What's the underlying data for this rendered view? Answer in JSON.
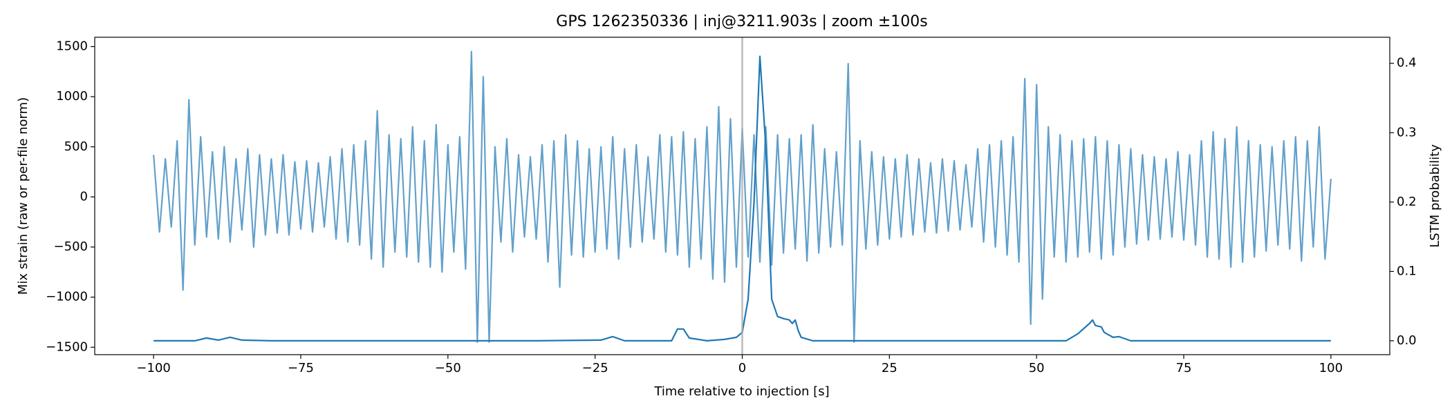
{
  "chart_data": {
    "type": "line",
    "title": "GPS 1262350336 | inj@3211.903s | zoom ±100s",
    "xlabel": "Time relative to injection [s]",
    "ylabel": "Mix strain (raw or per-file norm)",
    "y2label": "LSTM probability",
    "xlim": [
      -110,
      110
    ],
    "ylim": [
      -1574,
      1593
    ],
    "y2lim": [
      -0.02,
      0.4375
    ],
    "xticks": [
      {
        "value": -100,
        "label": "−100"
      },
      {
        "value": -75,
        "label": "−75"
      },
      {
        "value": -50,
        "label": "−50"
      },
      {
        "value": -25,
        "label": "−25"
      },
      0,
      25,
      50,
      75,
      100
    ],
    "yticks": [
      {
        "value": -1500,
        "label": "−1500"
      },
      {
        "value": -1000,
        "label": "−1000"
      },
      {
        "value": -500,
        "label": "−500"
      },
      0,
      500,
      1000,
      1500
    ],
    "y2ticks": [
      {
        "value": 0,
        "label": "0.0"
      },
      0.1,
      0.2,
      0.3,
      0.4
    ],
    "vline": 0,
    "vline_color": "#aaaaaa",
    "series": [
      {
        "color": "#62a0cb",
        "axis": "y",
        "x": [
          -100,
          -99,
          -98,
          -97,
          -96,
          -95,
          -94,
          -93,
          -92,
          -91,
          -90,
          -89,
          -88,
          -87,
          -86,
          -85,
          -84,
          -83,
          -82,
          -81,
          -80,
          -79,
          -78,
          -77,
          -76,
          -75,
          -74,
          -73,
          -72,
          -71,
          -70,
          -69,
          -68,
          -67,
          -66,
          -65,
          -64,
          -63,
          -62,
          -61,
          -60,
          -59,
          -58,
          -57,
          -56,
          -55,
          -54,
          -53,
          -52,
          -51,
          -50,
          -49,
          -48,
          -47,
          -46,
          -45,
          -44,
          -43,
          -42,
          -41,
          -40,
          -39,
          -38,
          -37,
          -36,
          -35,
          -34,
          -33,
          -32,
          -31,
          -30,
          -29,
          -28,
          -27,
          -26,
          -25,
          -24,
          -23,
          -22,
          -21,
          -20,
          -19,
          -18,
          -17,
          -16,
          -15,
          -14,
          -13,
          -12,
          -11,
          -10,
          -9,
          -8,
          -7,
          -6,
          -5,
          -4,
          -3,
          -2,
          -1,
          0,
          1,
          2,
          3,
          4,
          5,
          6,
          7,
          8,
          9,
          10,
          11,
          12,
          13,
          14,
          15,
          16,
          17,
          18,
          19,
          20,
          21,
          22,
          23,
          24,
          25,
          26,
          27,
          28,
          29,
          30,
          31,
          32,
          33,
          34,
          35,
          36,
          37,
          38,
          39,
          40,
          41,
          42,
          43,
          44,
          45,
          46,
          47,
          48,
          49,
          50,
          51,
          52,
          53,
          54,
          55,
          56,
          57,
          58,
          59,
          60,
          61,
          62,
          63,
          64,
          65,
          66,
          67,
          68,
          69,
          70,
          71,
          72,
          73,
          74,
          75,
          76,
          77,
          78,
          79,
          80,
          81,
          82,
          83,
          84,
          85,
          86,
          87,
          88,
          89,
          90,
          91,
          92,
          93,
          94,
          95,
          96,
          97,
          98,
          99,
          100
        ],
        "values": [
          420,
          -350,
          380,
          -300,
          560,
          -930,
          970,
          -480,
          600,
          -400,
          450,
          -420,
          500,
          -450,
          380,
          -330,
          480,
          -500,
          420,
          -380,
          380,
          -360,
          420,
          -380,
          350,
          -320,
          360,
          -350,
          340,
          -300,
          400,
          -420,
          480,
          -450,
          520,
          -480,
          560,
          -620,
          860,
          -700,
          620,
          -550,
          580,
          -600,
          700,
          -650,
          560,
          -700,
          720,
          -750,
          520,
          -550,
          600,
          -720,
          1450,
          -1450,
          1200,
          -1450,
          500,
          -450,
          580,
          -550,
          420,
          -400,
          400,
          -420,
          520,
          -650,
          560,
          -900,
          620,
          -580,
          560,
          -600,
          480,
          -550,
          500,
          -520,
          600,
          -620,
          480,
          -500,
          520,
          -450,
          400,
          -420,
          620,
          -550,
          600,
          -580,
          650,
          -700,
          580,
          -620,
          700,
          -820,
          900,
          -850,
          780,
          -700,
          680,
          -600,
          620,
          -650,
          700,
          -680,
          620,
          -560,
          580,
          -520,
          620,
          -640,
          720,
          -560,
          480,
          -500,
          450,
          -480,
          1330,
          -1450,
          560,
          -520,
          450,
          -480,
          400,
          -420,
          380,
          -400,
          420,
          -380,
          380,
          -350,
          340,
          -360,
          380,
          -340,
          360,
          -330,
          320,
          -300,
          480,
          -450,
          520,
          -500,
          560,
          -580,
          600,
          -650,
          1180,
          -1270,
          1120,
          -1020,
          700,
          -600,
          620,
          -650,
          560,
          -600,
          580,
          -550,
          600,
          -620,
          560,
          -580,
          520,
          -500,
          480,
          -470,
          420,
          -430,
          400,
          -420,
          380,
          -400,
          450,
          -430,
          420,
          -480,
          560,
          -600,
          650,
          -620,
          580,
          -700,
          700,
          -650,
          560,
          -600,
          520,
          -540,
          500,
          -480,
          560,
          -520,
          600,
          -640,
          560,
          -500,
          700,
          -620,
          180
        ]
      },
      {
        "color": "#1f77b4",
        "axis": "y2",
        "x": [
          -100,
          -93,
          -91,
          -89,
          -87,
          -85,
          -80,
          -50,
          -35,
          -24,
          -22,
          -20,
          -12,
          -11,
          -10,
          -9,
          -6,
          -3,
          -1,
          0,
          1,
          2,
          3,
          4,
          5,
          6,
          7,
          8,
          8.5,
          9,
          9.5,
          10,
          12,
          40,
          55,
          57,
          59,
          59.5,
          60,
          61,
          61.5,
          63,
          64,
          66,
          100
        ],
        "values": [
          0,
          0,
          0.004,
          0.001,
          0.005,
          0.001,
          0,
          0,
          0,
          0.001,
          0.006,
          0,
          0,
          0.017,
          0.017,
          0.004,
          0,
          0.002,
          0.005,
          0.012,
          0.06,
          0.2,
          0.41,
          0.28,
          0.06,
          0.035,
          0.032,
          0.03,
          0.025,
          0.03,
          0.015,
          0.005,
          0,
          0,
          0,
          0.01,
          0.025,
          0.03,
          0.022,
          0.02,
          0.012,
          0.005,
          0.006,
          0,
          0
        ]
      }
    ]
  }
}
